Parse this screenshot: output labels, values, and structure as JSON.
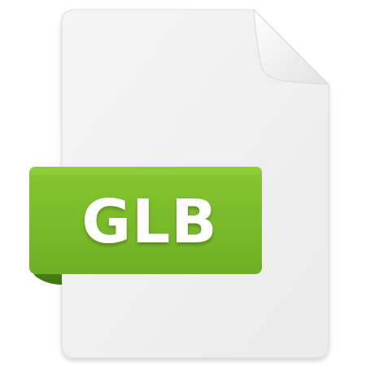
{
  "icon": {
    "name": "file-icon",
    "extension_label": "GLB"
  },
  "colors": {
    "page": "#f0f0f0",
    "page_edge": "#dcdcdc",
    "fold": "#f8f8f8",
    "ribbon": "#7cbd2a",
    "ribbon_dark": "#4f8a18",
    "label": "#ffffff"
  }
}
